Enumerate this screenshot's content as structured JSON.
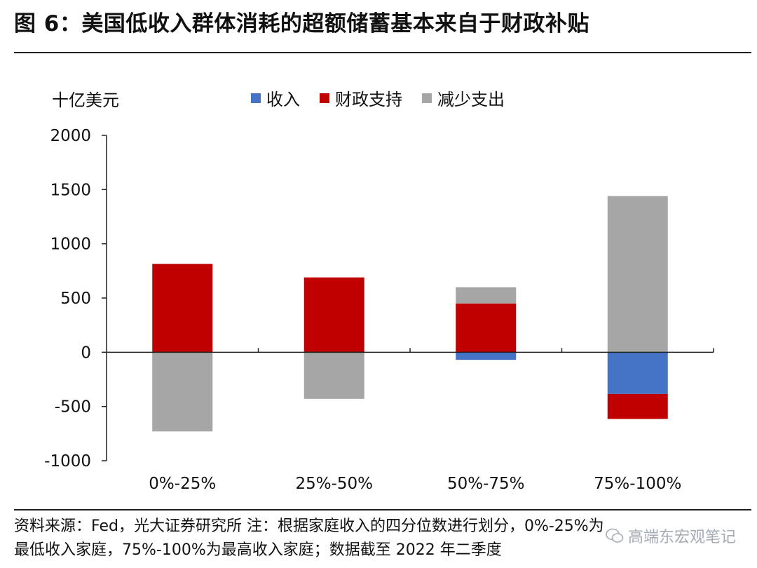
{
  "figure_title": "图 6：美国低收入群体消耗的超额储蓄基本来自于财政补贴",
  "source_line1": "资料来源：Fed，光大证券研究所 注：根据家庭收入的四分位数进行划分，0%-25%为",
  "source_line2": "最低收入家庭，75%-100%为最高收入家庭；数据截至 2022 年二季度",
  "watermark": "高端东宏观笔记",
  "chart_data": {
    "type": "bar",
    "stacked": true,
    "title": "图 6：美国低收入群体消耗的超额储蓄基本来自于财政补贴",
    "ylabel": "十亿美元",
    "xlabel": "",
    "ylim": [
      -1000,
      2000
    ],
    "yticks": [
      2000,
      1500,
      1000,
      500,
      0,
      -500,
      -1000
    ],
    "ytick_labels": [
      "2000",
      "1500",
      "1000",
      "500",
      "0",
      "-500",
      "-1000"
    ],
    "categories": [
      "0%-25%",
      "25%-50%",
      "50%-75%",
      "75%-100%"
    ],
    "legend_position": "top",
    "series": [
      {
        "name": "收入",
        "color": "#4472C4",
        "values": [
          0,
          0,
          -70,
          -385
        ]
      },
      {
        "name": "财政支持",
        "color": "#C00000",
        "values": [
          815,
          690,
          450,
          -230
        ]
      },
      {
        "name": "减少支出",
        "color": "#A6A6A6",
        "values": [
          -730,
          -430,
          150,
          1440
        ]
      }
    ]
  }
}
